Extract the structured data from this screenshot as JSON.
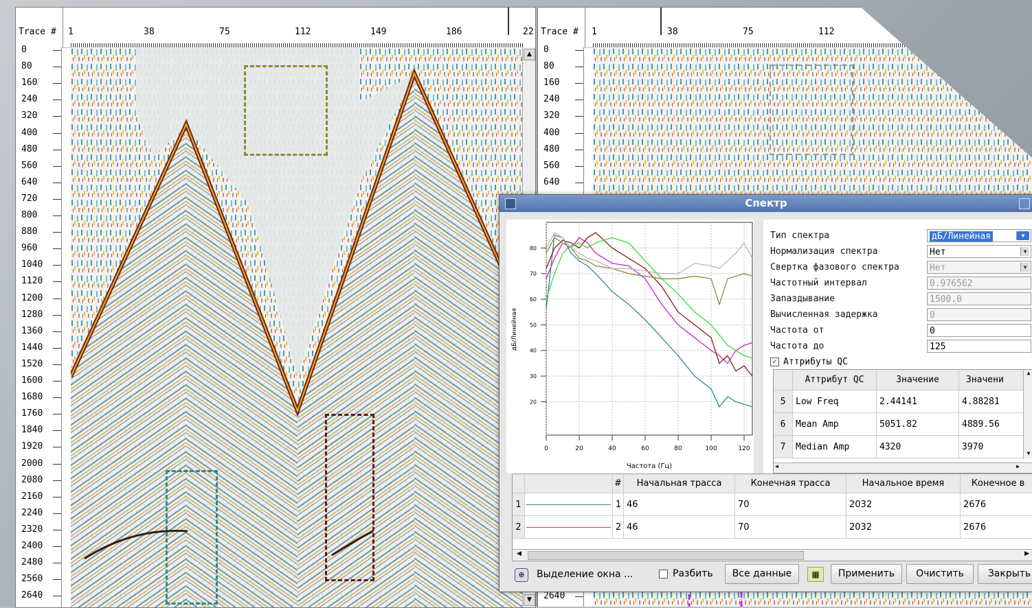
{
  "left_panel": {
    "trace_label": "Trace #",
    "trace_numbers": [
      "1",
      "38",
      "75",
      "112",
      "149",
      "186",
      "22"
    ],
    "time_ticks": [
      "0",
      "80",
      "160",
      "240",
      "320",
      "400",
      "480",
      "560",
      "640",
      "720",
      "800",
      "880",
      "960",
      "1040",
      "1120",
      "1200",
      "1280",
      "1360",
      "1440",
      "1520",
      "1600",
      "1680",
      "1760",
      "1840",
      "1920",
      "2000",
      "2080",
      "2160",
      "2240",
      "2320",
      "2400",
      "2480",
      "2560",
      "2640"
    ]
  },
  "right_panel": {
    "trace_label": "Trace #",
    "trace_numbers": [
      "1",
      "38",
      "75",
      "112"
    ],
    "time_ticks": [
      "0",
      "80",
      "160",
      "240",
      "320",
      "400",
      "480",
      "560",
      "640"
    ],
    "bottom_tick": "2640"
  },
  "dialog": {
    "title": "Спектр",
    "params": [
      {
        "label": "Тип спектра",
        "value": "дБ/Линейная",
        "state": "selected",
        "dropdown": true
      },
      {
        "label": "Нормализация спектра",
        "value": "Нет",
        "state": "normal",
        "dropdown": true
      },
      {
        "label": "Свертка фазового спектра",
        "value": "Нет",
        "state": "disabled",
        "dropdown": true
      },
      {
        "label": "Частотный интервал",
        "value": "0.976562",
        "state": "disabled",
        "dropdown": false
      },
      {
        "label": "Запаздывание",
        "value": "1500.0",
        "state": "disabled",
        "dropdown": false
      },
      {
        "label": "Вычисленная задержка",
        "value": "0",
        "state": "disabled",
        "dropdown": false
      },
      {
        "label": "Частота от",
        "value": "0",
        "state": "normal",
        "dropdown": false
      },
      {
        "label": "Частота до",
        "value": "125",
        "state": "normal",
        "dropdown": false
      }
    ],
    "qc_group": {
      "label": "Аттрибуты QC",
      "checked": true,
      "headers": [
        "Аттрибут QC",
        "Значение",
        "Значени"
      ],
      "rows": [
        {
          "idx": "5",
          "attr": "Low Freq",
          "v1": "2.44141",
          "v2": "4.88281"
        },
        {
          "idx": "6",
          "attr": "Mean Amp",
          "v1": "5051.82",
          "v2": "4889.56"
        },
        {
          "idx": "7",
          "attr": "Median Amp",
          "v1": "4320",
          "v2": "3970"
        }
      ]
    },
    "selection_table": {
      "headers": [
        "#",
        "Начальная трасса",
        "Конечная трасса",
        "Начальное время",
        "Конечное в"
      ],
      "rows": [
        {
          "row": "1",
          "num": "1",
          "start_trace": "46",
          "end_trace": "70",
          "start_time": "2032",
          "end_time": "2676",
          "color": "#2a8b8b"
        },
        {
          "row": "2",
          "num": "2",
          "start_trace": "46",
          "end_trace": "70",
          "start_time": "2032",
          "end_time": "2676",
          "color": "#e020e0"
        }
      ]
    },
    "bottom": {
      "selection_mode": "Выделение окна ...",
      "split_label": "Разбить",
      "all_data": "Все данные",
      "apply": "Применить",
      "clear": "Очистить",
      "close": "Закрыть"
    }
  },
  "chart_data": {
    "type": "line",
    "xlabel": "Частота (Гц)",
    "ylabel": "дБ/Линейная",
    "xlim": [
      0,
      125
    ],
    "ylim": [
      7,
      90
    ],
    "xticks": [
      0,
      20,
      40,
      60,
      80,
      100,
      120
    ],
    "yticks": [
      20,
      30,
      40,
      50,
      60,
      70,
      80
    ],
    "grid": true,
    "series": [
      {
        "color": "#2a8b8b",
        "x": [
          0,
          5,
          10,
          15,
          20,
          25,
          30,
          40,
          50,
          60,
          70,
          80,
          90,
          100,
          105,
          110,
          115,
          120,
          125
        ],
        "y": [
          56,
          85,
          84,
          78,
          75,
          73,
          70,
          63,
          58,
          52,
          45,
          38,
          30,
          25,
          18,
          22,
          20,
          19,
          18
        ]
      },
      {
        "color": "#d020d0",
        "x": [
          0,
          5,
          10,
          15,
          20,
          25,
          30,
          40,
          50,
          60,
          70,
          80,
          90,
          100,
          105,
          110,
          115,
          120,
          125
        ],
        "y": [
          68,
          76,
          82,
          80,
          84,
          82,
          78,
          74,
          73,
          68,
          58,
          50,
          45,
          40,
          38,
          35,
          40,
          42,
          43
        ]
      },
      {
        "color": "#7b1f1f",
        "x": [
          0,
          5,
          10,
          15,
          20,
          25,
          30,
          40,
          50,
          60,
          70,
          80,
          90,
          100,
          105,
          110,
          115,
          120,
          125
        ],
        "y": [
          72,
          80,
          83,
          82,
          80,
          84,
          86,
          80,
          76,
          72,
          65,
          55,
          50,
          45,
          35,
          38,
          32,
          34,
          30
        ]
      },
      {
        "color": "#33e033",
        "x": [
          0,
          5,
          10,
          15,
          20,
          25,
          30,
          40,
          50,
          60,
          70,
          80,
          90,
          100,
          105,
          110,
          115,
          120,
          125
        ],
        "y": [
          60,
          70,
          78,
          81,
          82,
          80,
          82,
          84,
          82,
          75,
          68,
          62,
          55,
          50,
          46,
          42,
          40,
          38,
          37
        ]
      },
      {
        "color": "#8b8b3a",
        "x": [
          0,
          5,
          10,
          15,
          20,
          25,
          30,
          40,
          50,
          60,
          70,
          80,
          90,
          100,
          105,
          110,
          115,
          120,
          125
        ],
        "y": [
          78,
          84,
          82,
          80,
          76,
          75,
          73,
          72,
          70,
          69,
          68,
          68,
          69,
          68,
          58,
          68,
          69,
          70,
          69
        ]
      },
      {
        "color": "#b8b8b8",
        "x": [
          0,
          5,
          10,
          15,
          20,
          25,
          30,
          40,
          50,
          60,
          70,
          80,
          90,
          100,
          105,
          110,
          115,
          120,
          125
        ],
        "y": [
          80,
          86,
          84,
          80,
          78,
          76,
          75,
          72,
          72,
          71,
          70,
          70,
          74,
          73,
          72,
          75,
          78,
          82,
          76
        ]
      }
    ]
  }
}
